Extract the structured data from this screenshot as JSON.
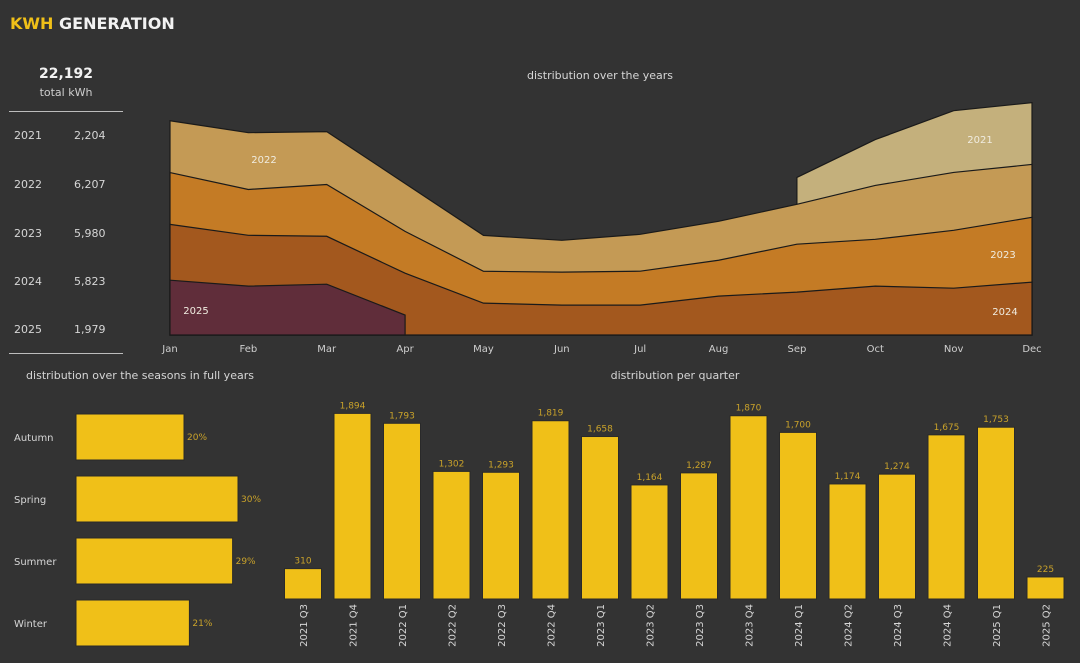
{
  "header": {
    "title_accent": "KWH",
    "title_rest": " GENERATION"
  },
  "kpi": {
    "total": "22,192",
    "label": "total kWh"
  },
  "years": [
    {
      "year": "2021",
      "value": "2,204"
    },
    {
      "year": "2022",
      "value": "6,207"
    },
    {
      "year": "2023",
      "value": "5,980"
    },
    {
      "year": "2024",
      "value": "5,823"
    },
    {
      "year": "2025",
      "value": "1,979"
    }
  ],
  "colors": {
    "background": "#333333",
    "bar": "#f0c018",
    "bar_label": "#c9a22a",
    "2021": "#c4b07c",
    "2022": "#c49a55",
    "2023": "#c47b25",
    "2024": "#a3581e",
    "2025": "#602d3a"
  },
  "chart_data": [
    {
      "type": "area",
      "title": "distribution over the years",
      "stacked": true,
      "categories": [
        "Jan",
        "Feb",
        "Mar",
        "Apr",
        "May",
        "Jun",
        "Jul",
        "Aug",
        "Sep",
        "Oct",
        "Nov",
        "Dec"
      ],
      "ylim": [
        0,
        2640
      ],
      "series": [
        {
          "name": "2025",
          "values": [
            616,
            549,
            571,
            224,
            null,
            null,
            null,
            null,
            null,
            null,
            null,
            null
          ]
        },
        {
          "name": "2024",
          "values": [
            627,
            571,
            538,
            470,
            358,
            336,
            336,
            437,
            482,
            549,
            526,
            594
          ]
        },
        {
          "name": "2023",
          "values": [
            582,
            515,
            582,
            470,
            358,
            370,
            381,
            403,
            538,
            526,
            650,
            728
          ]
        },
        {
          "name": "2022",
          "values": [
            582,
            638,
            594,
            538,
            403,
            358,
            414,
            437,
            448,
            605,
            650,
            594
          ]
        },
        {
          "name": "2021",
          "values": [
            null,
            null,
            null,
            null,
            null,
            null,
            null,
            null,
            302,
            515,
            694,
            694
          ]
        }
      ]
    },
    {
      "type": "bar",
      "orientation": "horizontal",
      "title": "distribution over the seasons in full years",
      "categories": [
        "Autumn",
        "Spring",
        "Summer",
        "Winter"
      ],
      "values": [
        20,
        30,
        29,
        21
      ],
      "labels": [
        "20%",
        "30%",
        "29%",
        "21%"
      ],
      "xlim": [
        0,
        30
      ]
    },
    {
      "type": "bar",
      "title": "distribution per quarter",
      "categories": [
        "2021 Q3",
        "2021 Q4",
        "2022 Q1",
        "2022 Q2",
        "2022 Q3",
        "2022 Q4",
        "2023 Q1",
        "2023 Q2",
        "2023 Q3",
        "2023 Q4",
        "2024 Q1",
        "2024 Q2",
        "2024 Q3",
        "2024 Q4",
        "2025 Q1",
        "2025 Q2"
      ],
      "values": [
        310,
        1894,
        1793,
        1302,
        1293,
        1819,
        1658,
        1164,
        1287,
        1870,
        1700,
        1174,
        1274,
        1675,
        1753,
        225
      ],
      "labels": [
        "310",
        "1,894",
        "1,793",
        "1,302",
        "1,293",
        "1,819",
        "1,658",
        "1,164",
        "1,287",
        "1,870",
        "1,700",
        "1,174",
        "1,274",
        "1,675",
        "1,753",
        "225"
      ],
      "ylim": [
        0,
        2000
      ]
    }
  ]
}
